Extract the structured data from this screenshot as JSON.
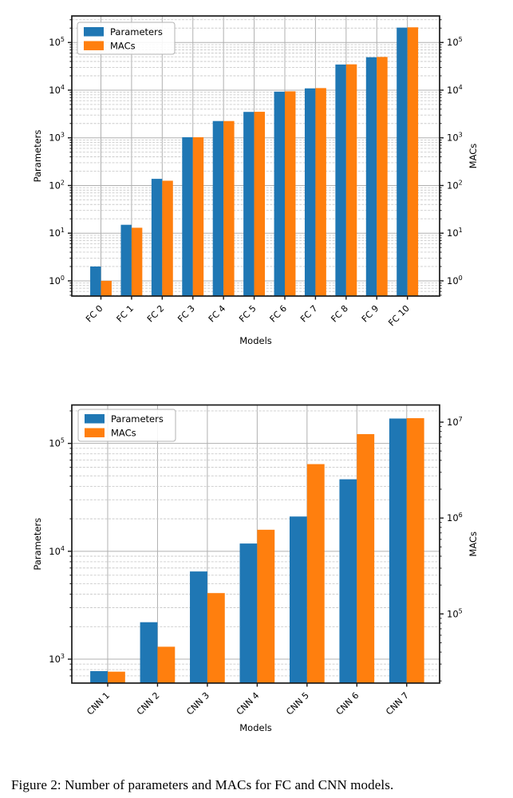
{
  "figure": {
    "caption": "Figure 2: Number of parameters and MACs for FC and CNN models."
  },
  "colors": {
    "parameters": "#1f77b4",
    "macs": "#ff7f0e",
    "grid_major": "#b0b0b0",
    "grid_minor": "#cbcbcb",
    "spine": "#1a1a1a",
    "text": "#000000",
    "legend_border": "#b3b3b3",
    "background": "#ffffff"
  },
  "chart_data": [
    {
      "type": "bar",
      "title": "",
      "xlabel": "Models",
      "ylabel_left": "Parameters",
      "ylabel_right": "MACs",
      "yscale": "log",
      "grid": true,
      "legend_position": "upper-left",
      "legend_entries": [
        "Parameters",
        "MACs"
      ],
      "categories": [
        "FC 0",
        "FC 1",
        "FC 2",
        "FC 3",
        "FC 4",
        "FC 5",
        "FC 6",
        "FC 7",
        "FC 8",
        "FC 9",
        "FC 10"
      ],
      "series": [
        {
          "name": "Parameters",
          "axis": "left",
          "color": "#1f77b4",
          "values": [
            2,
            15,
            138,
            1030,
            2250,
            3500,
            9300,
            10900,
            34500,
            49000,
            205000
          ]
        },
        {
          "name": "MACs",
          "axis": "right",
          "color": "#ff7f0e",
          "values": [
            1,
            13,
            126,
            1030,
            2250,
            3520,
            9450,
            11050,
            34800,
            49700,
            208000
          ]
        }
      ],
      "left_ylim": [
        0.48,
        360000
      ],
      "right_ylim": [
        0.48,
        360000
      ],
      "left_tick_exponents": [
        0,
        1,
        2,
        3,
        4,
        5
      ],
      "right_tick_exponents": [
        0,
        1,
        2,
        3,
        4,
        5
      ]
    },
    {
      "type": "bar",
      "title": "",
      "xlabel": "Models",
      "ylabel_left": "Parameters",
      "ylabel_right": "MACs",
      "yscale": "log",
      "grid": true,
      "legend_position": "upper-left",
      "legend_entries": [
        "Parameters",
        "MACs"
      ],
      "categories": [
        "CNN 1",
        "CNN 2",
        "CNN 3",
        "CNN 4",
        "CNN 5",
        "CNN 6",
        "CNN 7"
      ],
      "series": [
        {
          "name": "Parameters",
          "axis": "left",
          "color": "#1f77b4",
          "values": [
            775,
            2200,
            6500,
            11800,
            21000,
            46500,
            170000
          ]
        },
        {
          "name": "MACs",
          "axis": "right",
          "color": "#ff7f0e",
          "values": [
            25000,
            45500,
            165000,
            755000,
            3650000,
            7500000,
            11000000
          ]
        }
      ],
      "left_ylim": [
        600,
        227000
      ],
      "right_ylim": [
        19000,
        15100000
      ],
      "left_tick_exponents": [
        3,
        4,
        5
      ],
      "right_tick_exponents": [
        5,
        6,
        7
      ]
    }
  ]
}
